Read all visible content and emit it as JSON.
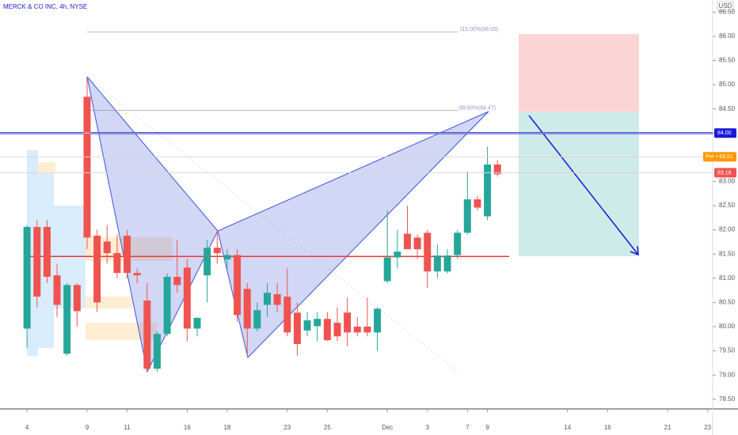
{
  "chart_data": {
    "type": "candlestick",
    "title": "MERCK & CO INC, 4h, NYSE",
    "currency": "USD",
    "up_color": "#26a69a",
    "down_color": "#ef5350",
    "open": [
      79.96,
      82.06,
      82.06,
      81.06,
      79.44,
      80.86,
      84.75,
      81.88,
      81.76,
      81.52,
      81.88,
      81.11,
      80.54,
      79.13,
      79.85,
      81.03,
      81.22,
      79.96,
      81.06,
      81.63,
      81.39,
      81.48,
      80.78,
      79.96,
      80.45,
      80.67,
      80.62,
      80.29,
      79.92,
      80.01,
      80.16,
      80.08,
      80.29,
      80.0,
      80.0,
      79.88,
      80.94,
      81.43,
      81.92,
      81.84,
      81.94,
      81.14,
      81.14,
      81.48,
      81.94,
      82.63,
      82.28,
      83.35
    ],
    "high": [
      82.1,
      82.2,
      82.2,
      81.3,
      80.9,
      80.9,
      85.16,
      82.0,
      82.1,
      81.9,
      82.0,
      81.2,
      80.9,
      79.9,
      81.1,
      81.8,
      81.4,
      80.2,
      81.8,
      82.0,
      81.6,
      81.6,
      80.9,
      80.5,
      80.9,
      80.9,
      81.2,
      80.5,
      80.3,
      80.3,
      80.3,
      80.4,
      80.6,
      80.2,
      80.6,
      80.4,
      82.4,
      82.0,
      82.5,
      81.9,
      82.0,
      81.7,
      81.6,
      82.0,
      83.2,
      82.7,
      83.72,
      83.45
    ],
    "low": [
      79.56,
      80.4,
      80.9,
      80.2,
      79.4,
      80.0,
      81.6,
      80.3,
      81.3,
      81.0,
      81.0,
      80.9,
      79.07,
      79.07,
      79.8,
      80.7,
      79.7,
      79.8,
      80.5,
      81.3,
      81.2,
      80.1,
      79.4,
      79.9,
      80.2,
      80.3,
      79.8,
      79.4,
      79.8,
      79.7,
      79.7,
      79.7,
      79.6,
      79.8,
      79.8,
      79.5,
      80.9,
      81.2,
      81.6,
      81.4,
      80.8,
      81.0,
      81.1,
      81.4,
      81.9,
      82.4,
      82.2,
      83.1
    ],
    "close": [
      82.06,
      80.62,
      81.03,
      80.45,
      80.86,
      80.32,
      81.84,
      80.5,
      81.52,
      81.11,
      81.11,
      81.06,
      79.13,
      79.85,
      81.03,
      80.86,
      79.96,
      80.18,
      81.63,
      81.52,
      81.48,
      80.24,
      79.96,
      80.34,
      80.7,
      80.45,
      79.88,
      79.64,
      80.13,
      80.16,
      79.72,
      79.8,
      79.88,
      79.88,
      79.88,
      80.37,
      81.43,
      81.55,
      81.6,
      81.6,
      81.14,
      81.47,
      81.47,
      81.94,
      82.63,
      82.46,
      83.35,
      83.15
    ],
    "xlim": [
      -2.7,
      68.5
    ],
    "xticks": [
      {
        "value": 0,
        "label": "4"
      },
      {
        "value": 6,
        "label": "9"
      },
      {
        "value": 10,
        "label": "11"
      },
      {
        "value": 16,
        "label": "16"
      },
      {
        "value": 20,
        "label": "18"
      },
      {
        "value": 26,
        "label": "23"
      },
      {
        "value": 30,
        "label": "25"
      },
      {
        "value": 36,
        "label": "Dec"
      },
      {
        "value": 40,
        "label": "3"
      },
      {
        "value": 44,
        "label": "7"
      },
      {
        "value": 46,
        "label": "9"
      },
      {
        "value": 54,
        "label": "14"
      },
      {
        "value": 58,
        "label": "16"
      },
      {
        "value": 64,
        "label": "21"
      },
      {
        "value": 68,
        "label": "23"
      }
    ],
    "ylim": [
      78.3,
      86.75
    ],
    "yticks": [
      {
        "value": 78.5,
        "label": "78.50"
      },
      {
        "value": 79,
        "label": "79.00"
      },
      {
        "value": 79.5,
        "label": "79.50"
      },
      {
        "value": 80,
        "label": "80.00"
      },
      {
        "value": 80.5,
        "label": "80.50"
      },
      {
        "value": 81,
        "label": "81.00"
      },
      {
        "value": 81.5,
        "label": "81.50"
      },
      {
        "value": 82,
        "label": "82.00"
      },
      {
        "value": 82.5,
        "label": "82.50"
      },
      {
        "value": 83,
        "label": "83.00"
      },
      {
        "value": 83.5,
        "label": "83.50"
      },
      {
        "value": 84,
        "label": "84.00"
      },
      {
        "value": 84.5,
        "label": "84.50"
      },
      {
        "value": 85,
        "label": "85.00"
      },
      {
        "value": 85.5,
        "label": "85.50"
      },
      {
        "value": 86,
        "label": "86.00"
      },
      {
        "value": 86.5,
        "label": "86.50"
      }
    ],
    "levels": [
      {
        "value": 84,
        "color": "#1a1ad8"
      },
      {
        "value": 81.45,
        "color": "#e53935"
      }
    ],
    "fib_levels": [
      {
        "value": 86.09,
        "label": "115.00%(86.09)"
      },
      {
        "value": 84.47,
        "label": "88.60%(84.47)"
      }
    ],
    "price_tags": [
      {
        "value": 84,
        "label": "84.00",
        "color": "#1a1ad8"
      },
      {
        "value": 83.51,
        "label": "Pre • 83.51",
        "color": "#ff9800"
      },
      {
        "value": 83.18,
        "label": "83.18",
        "color": "#ef5350"
      }
    ]
  }
}
